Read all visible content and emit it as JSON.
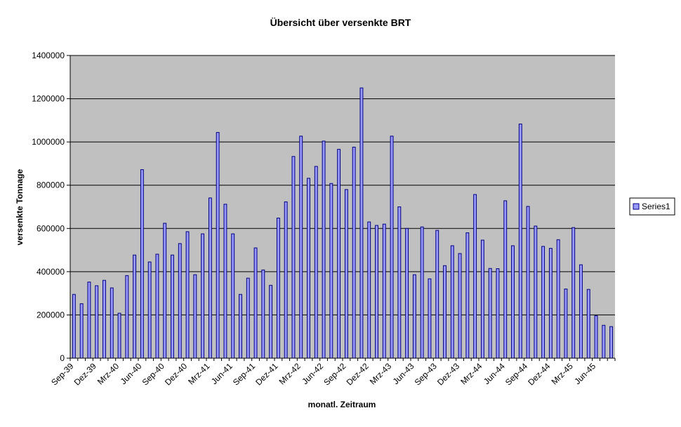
{
  "chart_data": {
    "type": "bar",
    "title": "Übersicht über versenkte BRT",
    "xlabel": "monatl. Zeitraum",
    "ylabel": "versenkte Tonnage",
    "ylim": [
      0,
      1400000
    ],
    "yticks": [
      0,
      200000,
      400000,
      600000,
      800000,
      1000000,
      1200000,
      1400000
    ],
    "grid": true,
    "legend_position": "right",
    "colors": {
      "bar_fill": "#9999ff",
      "bar_stroke": "#000080",
      "plot_bg": "#c0c0c0",
      "grid": "#000000"
    },
    "categories": [
      "Sep-39",
      "Okt-39",
      "Nov-39",
      "Dez-39",
      "Jan-40",
      "Feb-40",
      "Mrz-40",
      "Apr-40",
      "Mai-40",
      "Jun-40",
      "Jul-40",
      "Aug-40",
      "Sep-40",
      "Okt-40",
      "Nov-40",
      "Dez-40",
      "Jan-41",
      "Feb-41",
      "Mrz-41",
      "Apr-41",
      "Mai-41",
      "Jun-41",
      "Jul-41",
      "Aug-41",
      "Sep-41",
      "Okt-41",
      "Nov-41",
      "Dez-41",
      "Jan-42",
      "Feb-42",
      "Mrz-42",
      "Apr-42",
      "Mai-42",
      "Jun-42",
      "Jul-42",
      "Aug-42",
      "Sep-42",
      "Okt-42",
      "Nov-42",
      "Dez-42",
      "Jan-43",
      "Feb-43",
      "Mrz-43",
      "Apr-43",
      "Mai-43",
      "Jun-43",
      "Jul-43",
      "Aug-43",
      "Sep-43",
      "Okt-43",
      "Nov-43",
      "Dez-43",
      "Jan-44",
      "Feb-44",
      "Mrz-44",
      "Apr-44",
      "Mai-44",
      "Jun-44",
      "Jul-44",
      "Aug-44",
      "Sep-44",
      "Okt-44",
      "Nov-44",
      "Dez-44",
      "Jan-45",
      "Feb-45",
      "Mrz-45",
      "Apr-45",
      "Mai-45",
      "Jun-45",
      "Jul-45",
      "Aug-45"
    ],
    "tick_labels": [
      "Sep-39",
      "Dez-39",
      "Mrz-40",
      "Jun-40",
      "Sep-40",
      "Dez-40",
      "Mrz-41",
      "Jun-41",
      "Sep-41",
      "Dez-41",
      "Mrz-42",
      "Jun-42",
      "Sep-42",
      "Dez-42",
      "Mrz-43",
      "Jun-43",
      "Sep-43",
      "Dez-43",
      "Mrz-44",
      "Jun-44",
      "Sep-44",
      "Dez-44",
      "Mrz-45",
      "Jun-45"
    ],
    "series": [
      {
        "name": "Series1",
        "values": [
          295000,
          252000,
          352000,
          335000,
          360000,
          325000,
          208000,
          382000,
          477000,
          872000,
          445000,
          481000,
          624000,
          477000,
          530000,
          585000,
          386000,
          575000,
          741000,
          1044000,
          712000,
          575000,
          295000,
          370000,
          510000,
          408000,
          337000,
          648000,
          723000,
          933000,
          1027000,
          832000,
          887000,
          1004000,
          808000,
          966000,
          780000,
          976000,
          1250000,
          630000,
          614000,
          620000,
          1027000,
          700000,
          600000,
          386000,
          607000,
          367000,
          591000,
          428000,
          520000,
          484000,
          580000,
          757000,
          546000,
          415000,
          414000,
          728000,
          520000,
          1083000,
          702000,
          611000,
          517000,
          508000,
          548000,
          320000,
          604000,
          432000,
          318000,
          196000,
          152000,
          146000
        ]
      }
    ]
  }
}
